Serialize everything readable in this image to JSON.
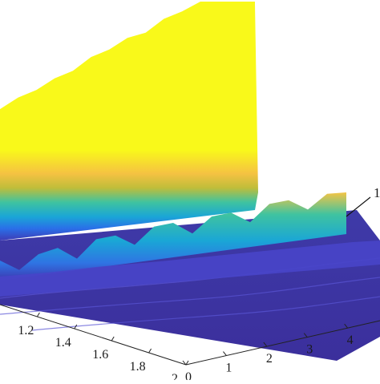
{
  "chart_data": {
    "type": "surface",
    "title": "",
    "colormap": "parula",
    "axes": {
      "left_axis": {
        "label": "",
        "ticks": [
          "1.2",
          "1.4",
          "1.6",
          "1.8",
          "2"
        ],
        "range": [
          1.0,
          2.0
        ]
      },
      "right_axis": {
        "label": "",
        "ticks": [
          "0",
          "1",
          "2",
          "3",
          "4"
        ],
        "range": [
          0,
          4.8
        ]
      },
      "z_axis": {
        "label": "",
        "range": [
          0,
          1
        ]
      }
    },
    "annotation": {
      "text": "1",
      "note_truncated_at_edge": true
    },
    "ridges": [
      {
        "name": "",
        "description": "tall peak",
        "profile": [
          0.48,
          0.51,
          0.55,
          0.58,
          0.62,
          0.66,
          0.7,
          0.73,
          0.76,
          0.8,
          0.84,
          0.88,
          0.9,
          0.93,
          1.0
        ]
      },
      {
        "name": "",
        "description": "middle ridge",
        "profile": [
          0.02,
          0.04,
          0.03,
          0.06,
          0.07,
          0.09,
          0.1,
          0.12,
          0.13,
          0.14,
          0.15,
          0.15,
          0.16,
          0.18,
          0.19,
          0.2,
          0.22,
          0.21,
          0.2
        ]
      }
    ],
    "grid": false,
    "legend": "none"
  }
}
